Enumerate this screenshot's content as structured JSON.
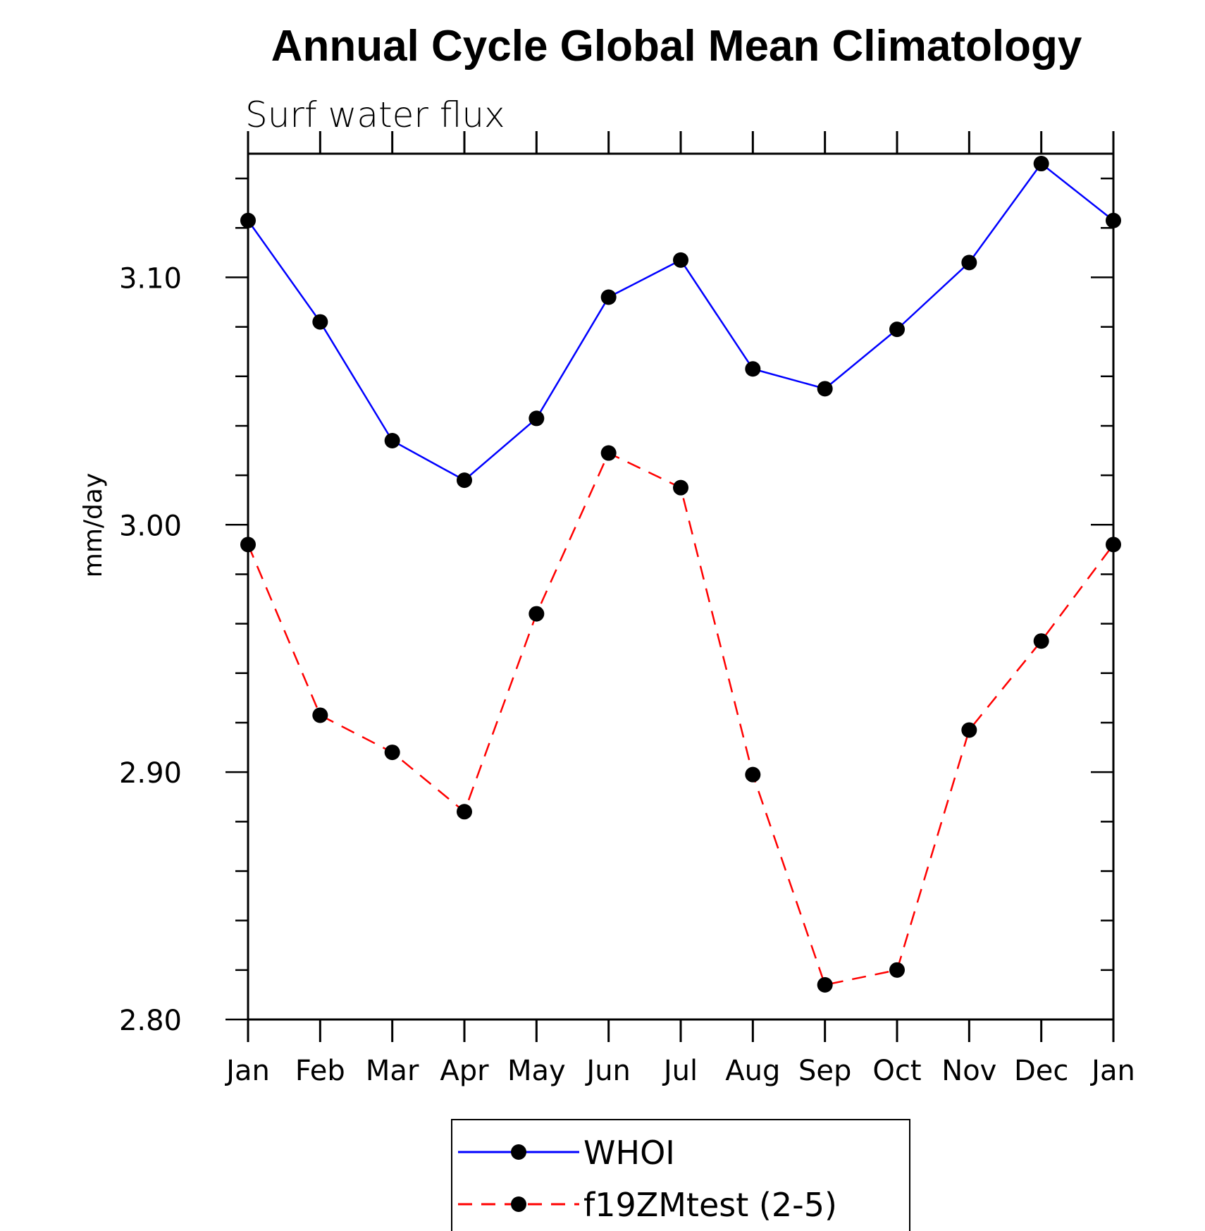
{
  "chart_data": {
    "type": "line",
    "title": "Annual Cycle Global Mean Climatology",
    "subtitle": "Surf water flux",
    "ylabel": "mm/day",
    "xlabel": "",
    "categories": [
      "Jan",
      "Feb",
      "Mar",
      "Apr",
      "May",
      "Jun",
      "Jul",
      "Aug",
      "Sep",
      "Oct",
      "Nov",
      "Dec",
      "Jan"
    ],
    "ylim": [
      2.8,
      3.15
    ],
    "yticks": [
      "2.80",
      "2.90",
      "3.00",
      "3.10"
    ],
    "ytick_values": [
      2.8,
      2.9,
      3.0,
      3.1
    ],
    "grid": false,
    "legend_position": "bottom-center",
    "series": [
      {
        "name": "WHOI",
        "color": "#0000ff",
        "dash": "solid",
        "marker": "filled-circle",
        "values": [
          3.123,
          3.082,
          3.034,
          3.018,
          3.043,
          3.092,
          3.107,
          3.063,
          3.055,
          3.079,
          3.106,
          3.146,
          3.123
        ]
      },
      {
        "name": "f19ZMtest (2-5)",
        "color": "#ff0000",
        "dash": "dashed",
        "marker": "filled-circle",
        "values": [
          2.992,
          2.923,
          2.908,
          2.884,
          2.964,
          3.029,
          3.015,
          2.899,
          2.814,
          2.82,
          2.917,
          2.953,
          2.992
        ]
      }
    ]
  }
}
